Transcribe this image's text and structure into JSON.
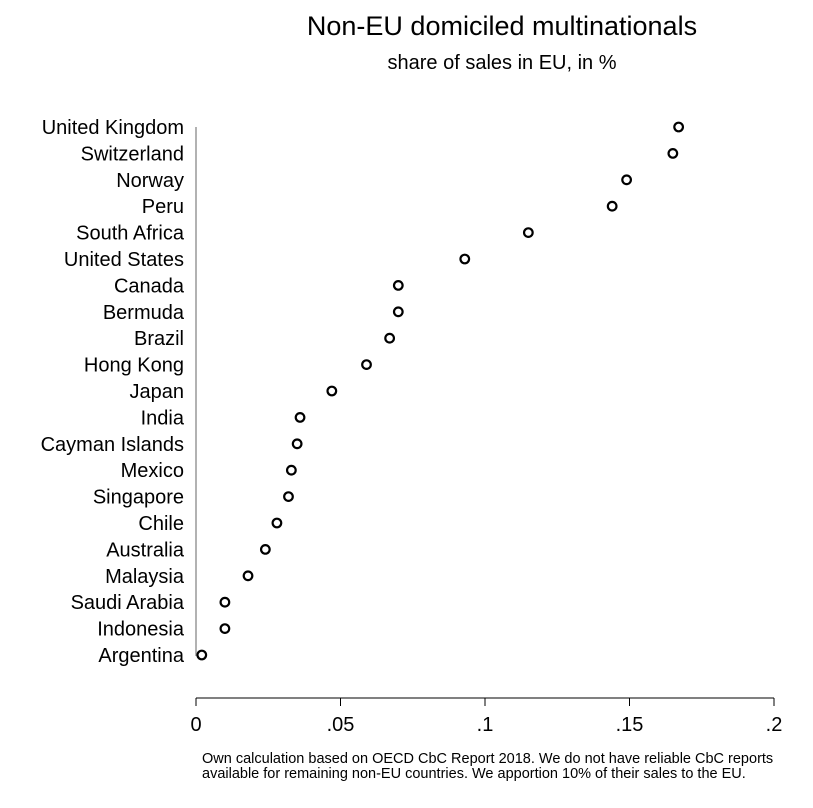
{
  "chart_data": {
    "type": "scatter",
    "title": "Non-EU domiciled multinationals",
    "subtitle": "share of sales in EU, in %",
    "xlabel": "",
    "ylabel": "",
    "xlim": [
      0,
      0.2
    ],
    "xticks": [
      0,
      0.05,
      0.1,
      0.15,
      0.2
    ],
    "xtick_labels": [
      "0",
      ".05",
      ".1",
      ".15",
      ".2"
    ],
    "grid": false,
    "marker": "hollow-circle",
    "categories": [
      "United Kingdom",
      "Switzerland",
      "Norway",
      "Peru",
      "South Africa",
      "United States",
      "Canada",
      "Bermuda",
      "Brazil",
      "Hong Kong",
      "Japan",
      "India",
      "Cayman Islands",
      "Mexico",
      "Singapore",
      "Chile",
      "Australia",
      "Malaysia",
      "Saudi Arabia",
      "Indonesia",
      "Argentina"
    ],
    "values": [
      0.167,
      0.165,
      0.149,
      0.144,
      0.115,
      0.093,
      0.07,
      0.07,
      0.067,
      0.059,
      0.047,
      0.036,
      0.035,
      0.033,
      0.032,
      0.028,
      0.024,
      0.018,
      0.01,
      0.01,
      0.002
    ],
    "note": "Own calculation based on OECD CbC Report 2018. We do not have reliable CbC reports available for remaining non-EU countries. We apportion 10% of their sales to the EU."
  }
}
